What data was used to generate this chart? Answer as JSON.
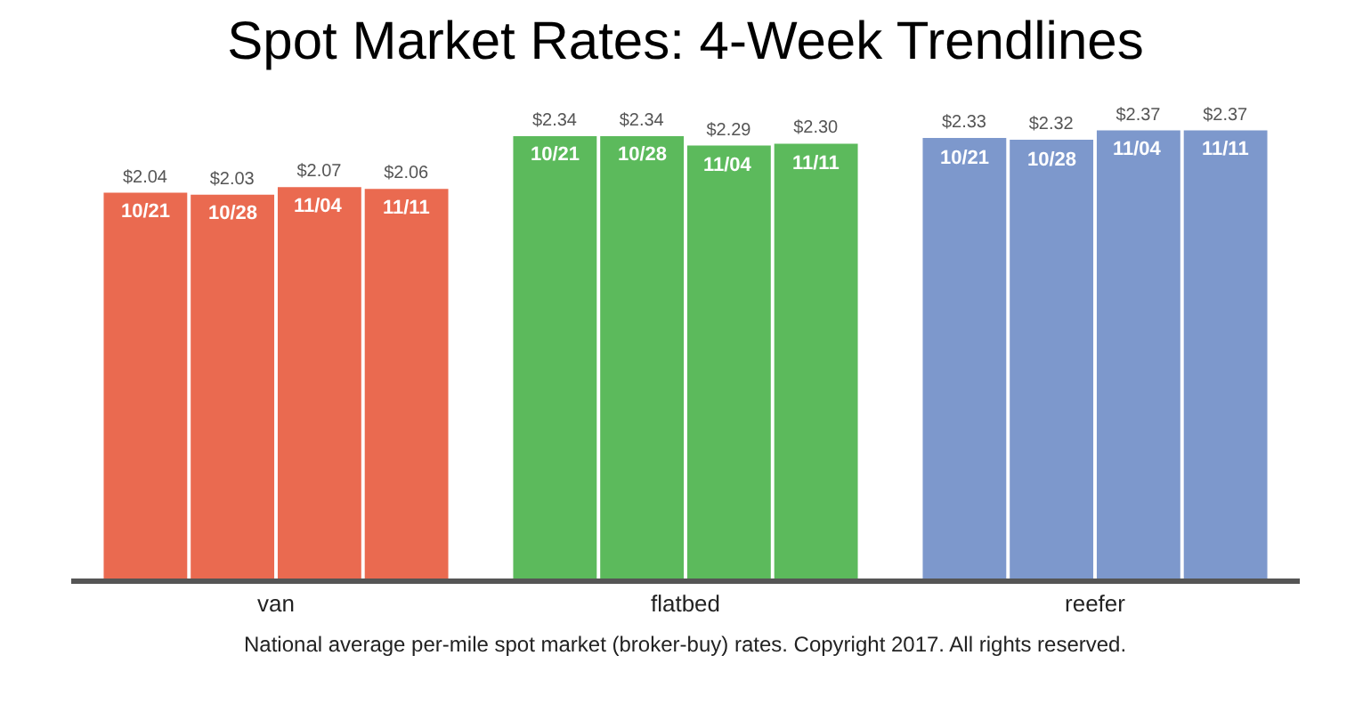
{
  "chart_data": {
    "type": "bar",
    "title": "Spot Market Rates: 4-Week Trendlines",
    "categories": [
      "van",
      "flatbed",
      "reefer"
    ],
    "series": [
      {
        "name": "10/21",
        "colors": [
          "#ea6a50",
          "#5cba5c",
          "#7d98cc"
        ],
        "values": [
          2.04,
          2.34,
          2.33
        ],
        "value_labels": [
          "$2.04",
          "$2.34",
          "$2.33"
        ]
      },
      {
        "name": "10/28",
        "colors": [
          "#ea6a50",
          "#5cba5c",
          "#7d98cc"
        ],
        "values": [
          2.03,
          2.34,
          2.32
        ],
        "value_labels": [
          "$2.03",
          "$2.34",
          "$2.32"
        ]
      },
      {
        "name": "11/04",
        "colors": [
          "#ea6a50",
          "#5cba5c",
          "#7d98cc"
        ],
        "values": [
          2.07,
          2.29,
          2.37
        ],
        "value_labels": [
          "$2.07",
          "$2.29",
          "$2.37"
        ]
      },
      {
        "name": "11/11",
        "colors": [
          "#ea6a50",
          "#5cba5c",
          "#7d98cc"
        ],
        "values": [
          2.06,
          2.3,
          2.37
        ],
        "value_labels": [
          "$2.06",
          "$2.30",
          "$2.37"
        ]
      }
    ],
    "tick_labels": "x",
    "legend": false,
    "annotations": [
      "National average per-mile spot market (broker-buy) rates. Copyright 2017. All rights reserved."
    ]
  }
}
